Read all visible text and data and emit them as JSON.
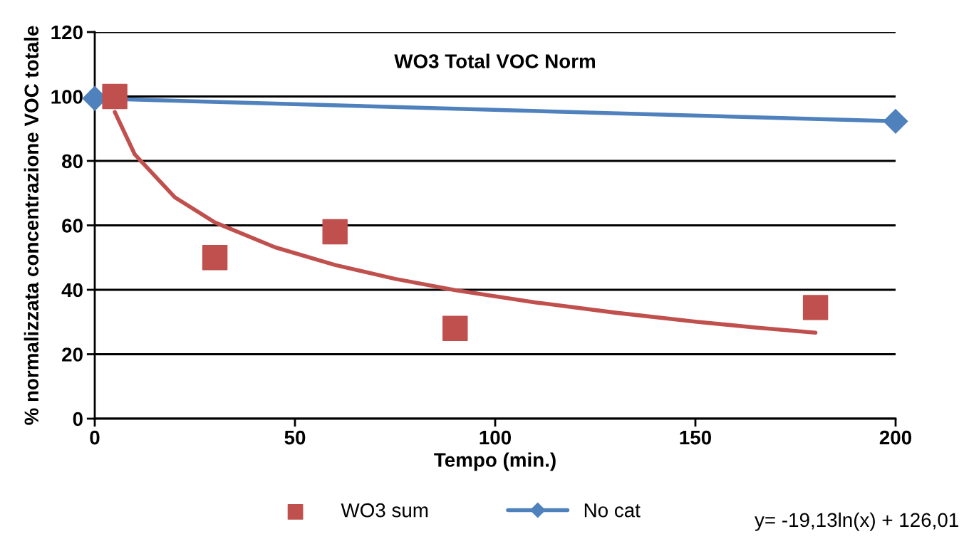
{
  "chart_data": {
    "type": "line",
    "title": "WO3 Total VOC Norm",
    "xlabel": "Tempo (min.)",
    "ylabel": "% normalizzata concentrazione VOC totale",
    "series": [
      {
        "name": "WO3 sum",
        "type": "scatter",
        "color": "#c0504d",
        "marker": "square",
        "x": [
          5,
          30,
          60,
          90,
          180
        ],
        "values": [
          100,
          50,
          58,
          28,
          34.5
        ]
      },
      {
        "name": "No cat",
        "color": "#4f81bd",
        "marker": "diamond",
        "x": [
          0,
          200
        ],
        "values": [
          99.4,
          92.3
        ]
      },
      {
        "color": "#c0504d",
        "marker": "none",
        "x": [
          5,
          10,
          20,
          30,
          45,
          60,
          75,
          90,
          110,
          130,
          150,
          165,
          180
        ],
        "values": [
          95.2,
          82.0,
          68.7,
          60.9,
          53.2,
          47.7,
          43.4,
          39.9,
          36.1,
          32.9,
          30.1,
          28.3,
          26.7
        ]
      }
    ],
    "annotations": [
      "y= -19,13ln(x) + 126,01"
    ],
    "xlim": [
      0,
      200
    ],
    "xticks": [
      0,
      50,
      100,
      150,
      200
    ],
    "ylim": [
      0,
      120
    ],
    "yticks": [
      0,
      20,
      40,
      60,
      80,
      100,
      120
    ],
    "grid": "y",
    "legend": "bottom"
  }
}
